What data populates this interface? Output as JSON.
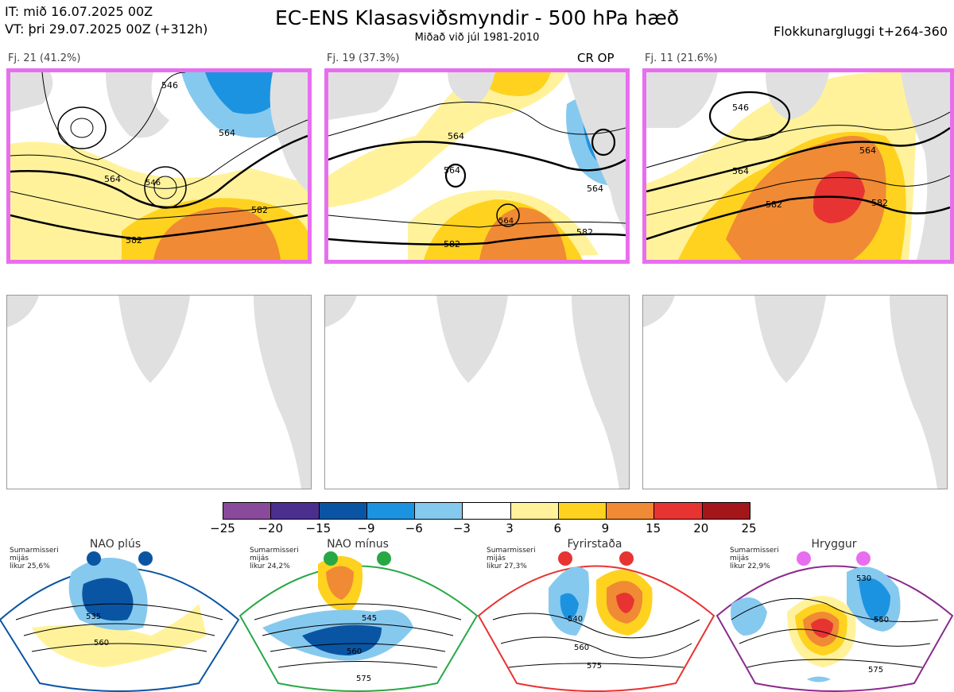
{
  "header": {
    "it": "IT: mið 16.07.2025 00Z",
    "vt": "VT: þri 29.07.2025 00Z  (+312h)",
    "title": "EC-ENS Klasasviðsmyndir - 500 hPa hæð",
    "subtitle": "Miðað við júl 1981-2010",
    "window": "Flokkunargluggi t+264-360"
  },
  "panels": [
    {
      "label": "Fj. 21 (41.2%)",
      "contours": [
        "546",
        "564",
        "582",
        "546",
        "564",
        "582"
      ]
    },
    {
      "label": "Fj. 19 (37.3%)",
      "marker": "CR OP",
      "contours": [
        "564",
        "564",
        "564",
        "582",
        "582",
        "564"
      ]
    },
    {
      "label": "Fj. 11 (21.6%)",
      "contours": [
        "546",
        "564",
        "564",
        "582",
        "582"
      ]
    }
  ],
  "colorbar": {
    "ticks": [
      "−25",
      "−20",
      "−15",
      "−9",
      "−6",
      "−3",
      "3",
      "6",
      "9",
      "15",
      "20",
      "25"
    ],
    "colors": [
      "#8a4a9c",
      "#4a2f8f",
      "#0a55a3",
      "#1c93e0",
      "#86c9ef",
      "#ffffff",
      "#fff29b",
      "#ffd21f",
      "#f08a34",
      "#e83333",
      "#a3171b"
    ]
  },
  "regimes": [
    {
      "name": "NAO plús",
      "info": [
        "Sumarmisseri",
        "mijás",
        "likur 25,6%"
      ],
      "color": "#0a55a3",
      "contours": [
        "535",
        "560"
      ]
    },
    {
      "name": "NAO mínus",
      "info": [
        "Sumarmisseri",
        "mijás",
        "likur 24,2%"
      ],
      "color": "#27a845",
      "contours": [
        "545",
        "560",
        "575"
      ]
    },
    {
      "name": "Fyrirstaða",
      "info": [
        "Sumarmisseri",
        "mijás",
        "likur 27,3%"
      ],
      "color": "#e83333",
      "contours": [
        "540",
        "560",
        "575"
      ]
    },
    {
      "name": "Hryggur",
      "info": [
        "Sumarmisseri",
        "mijás",
        "likur 22,9%"
      ],
      "color": "#e86ef0",
      "contours": [
        "530",
        "550",
        "575"
      ]
    }
  ]
}
